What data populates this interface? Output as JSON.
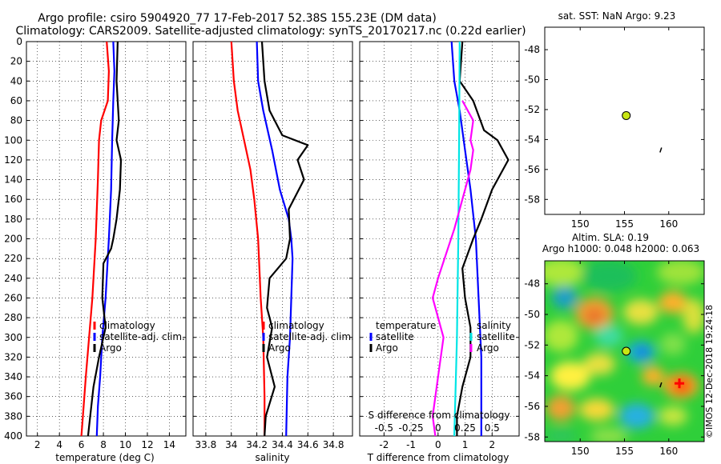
{
  "header": {
    "line1": "Argo profile: csiro 5904920_77 17-Feb-2017 52.38S 155.23E (DM data)",
    "line2": "Climatology: CARS2009. Satellite-adjusted climatology: synTS_20170217.nc (0.22d earlier)"
  },
  "colors": {
    "climatology": "#ff0000",
    "satellite": "#0000ff",
    "argo": "#000000",
    "salinity_diff": "#ff00ff",
    "temperature_diff_clim": "#00e5e5",
    "marker": "#c8e614"
  },
  "chart_data": [
    {
      "type": "line",
      "id": "temperature",
      "xlabel": "temperature (deg C)",
      "ylabel": "",
      "xlim": [
        1,
        15.5
      ],
      "ylim": [
        400,
        0
      ],
      "xticks": [
        "2",
        "4",
        "6",
        "8",
        "10",
        "12",
        "14"
      ],
      "xtick_values": [
        2,
        4,
        6,
        8,
        10,
        12,
        14
      ],
      "yticks": [
        "0",
        "20",
        "40",
        "60",
        "80",
        "100",
        "120",
        "140",
        "160",
        "180",
        "200",
        "220",
        "240",
        "260",
        "280",
        "300",
        "320",
        "340",
        "360",
        "380",
        "400"
      ],
      "ytick_values": [
        0,
        20,
        40,
        60,
        80,
        100,
        120,
        140,
        160,
        180,
        200,
        220,
        240,
        260,
        280,
        300,
        320,
        340,
        360,
        380,
        400
      ],
      "legend": [
        "climatology",
        "satellite-adj. clim.",
        "Argo"
      ],
      "series": [
        {
          "name": "climatology",
          "color": "#ff0000",
          "points": [
            [
              8.3,
              0
            ],
            [
              8.5,
              30
            ],
            [
              8.4,
              60
            ],
            [
              7.8,
              80
            ],
            [
              7.6,
              100
            ],
            [
              7.5,
              140
            ],
            [
              7.3,
              200
            ],
            [
              7.0,
              260
            ],
            [
              6.7,
              300
            ],
            [
              6.4,
              340
            ],
            [
              6.2,
              370
            ],
            [
              6.0,
              400
            ]
          ]
        },
        {
          "name": "satellite-adj. clim.",
          "color": "#0000ff",
          "points": [
            [
              8.9,
              0
            ],
            [
              9.0,
              30
            ],
            [
              8.9,
              60
            ],
            [
              8.8,
              100
            ],
            [
              8.7,
              150
            ],
            [
              8.5,
              200
            ],
            [
              8.2,
              260
            ],
            [
              7.9,
              300
            ],
            [
              7.7,
              340
            ],
            [
              7.5,
              370
            ],
            [
              7.4,
              400
            ]
          ]
        },
        {
          "name": "Argo",
          "color": "#000000",
          "points": [
            [
              9.3,
              0
            ],
            [
              9.2,
              40
            ],
            [
              9.3,
              60
            ],
            [
              9.4,
              80
            ],
            [
              9.2,
              100
            ],
            [
              9.6,
              120
            ],
            [
              9.5,
              150
            ],
            [
              9.2,
              180
            ],
            [
              8.9,
              200
            ],
            [
              8.7,
              210
            ],
            [
              8.0,
              225
            ],
            [
              7.9,
              260
            ],
            [
              8.2,
              290
            ],
            [
              7.6,
              320
            ],
            [
              7.1,
              350
            ],
            [
              6.8,
              380
            ],
            [
              6.6,
              400
            ]
          ]
        }
      ]
    },
    {
      "type": "line",
      "id": "salinity",
      "xlabel": "salinity",
      "ylabel": "",
      "xlim": [
        33.7,
        34.95
      ],
      "ylim": [
        400,
        0
      ],
      "xticks": [
        "33.8",
        "34",
        "34.2",
        "34.4",
        "34.6",
        "34.8"
      ],
      "xtick_values": [
        33.8,
        34.0,
        34.2,
        34.4,
        34.6,
        34.8
      ],
      "legend": [
        "climatology",
        "satellite-adj. clim.",
        "Argo"
      ],
      "series": [
        {
          "name": "climatology",
          "color": "#ff0000",
          "points": [
            [
              34.0,
              0
            ],
            [
              34.02,
              40
            ],
            [
              34.05,
              70
            ],
            [
              34.1,
              100
            ],
            [
              34.15,
              130
            ],
            [
              34.18,
              160
            ],
            [
              34.21,
              200
            ],
            [
              34.23,
              260
            ],
            [
              34.25,
              300
            ],
            [
              34.26,
              360
            ],
            [
              34.26,
              400
            ]
          ]
        },
        {
          "name": "satellite-adj. clim.",
          "color": "#0000ff",
          "points": [
            [
              34.2,
              0
            ],
            [
              34.21,
              40
            ],
            [
              34.25,
              70
            ],
            [
              34.32,
              110
            ],
            [
              34.38,
              150
            ],
            [
              34.45,
              180
            ],
            [
              34.47,
              200
            ],
            [
              34.48,
              220
            ],
            [
              34.47,
              260
            ],
            [
              34.46,
              300
            ],
            [
              34.44,
              340
            ],
            [
              34.43,
              400
            ]
          ]
        },
        {
          "name": "Argo",
          "color": "#000000",
          "points": [
            [
              34.24,
              0
            ],
            [
              34.26,
              40
            ],
            [
              34.3,
              70
            ],
            [
              34.4,
              95
            ],
            [
              34.6,
              105
            ],
            [
              34.52,
              120
            ],
            [
              34.57,
              140
            ],
            [
              34.45,
              170
            ],
            [
              34.46,
              200
            ],
            [
              34.43,
              220
            ],
            [
              34.3,
              240
            ],
            [
              34.28,
              270
            ],
            [
              34.32,
              290
            ],
            [
              34.28,
              320
            ],
            [
              34.34,
              350
            ],
            [
              34.27,
              380
            ],
            [
              34.26,
              400
            ]
          ]
        }
      ]
    },
    {
      "type": "line",
      "id": "difference",
      "xlabel": "T difference from climatology",
      "secondary_xlabel": "S difference from climatology",
      "xlim": [
        -2.9,
        3.0
      ],
      "ylim": [
        400,
        0
      ],
      "xticks": [
        "-2",
        "-1",
        "0",
        "1",
        "2"
      ],
      "xtick_values": [
        -2,
        -1,
        0,
        1,
        2
      ],
      "secondary_xticks": [
        "-0.5",
        "-0.25",
        "0",
        "0.25",
        "0.5"
      ],
      "legend_left": [
        "temperature",
        "satellite",
        "Argo"
      ],
      "legend_right": [
        "salinity",
        "satellite",
        "Argo"
      ],
      "series": [
        {
          "name": "temperature satellite",
          "color": "#0000ff",
          "points": [
            [
              0.5,
              0
            ],
            [
              0.6,
              40
            ],
            [
              0.8,
              70
            ],
            [
              1.0,
              110
            ],
            [
              1.2,
              150
            ],
            [
              1.4,
              200
            ],
            [
              1.5,
              260
            ],
            [
              1.6,
              320
            ],
            [
              1.6,
              400
            ]
          ]
        },
        {
          "name": "temperature Argo",
          "color": "#000000",
          "points": [
            [
              0.9,
              0
            ],
            [
              0.8,
              40
            ],
            [
              1.3,
              60
            ],
            [
              1.7,
              90
            ],
            [
              2.2,
              100
            ],
            [
              2.6,
              120
            ],
            [
              2.0,
              150
            ],
            [
              1.6,
              180
            ],
            [
              1.3,
              200
            ],
            [
              0.9,
              230
            ],
            [
              1.0,
              260
            ],
            [
              1.2,
              290
            ],
            [
              1.2,
              320
            ],
            [
              0.9,
              350
            ],
            [
              0.7,
              380
            ],
            [
              0.7,
              400
            ]
          ]
        },
        {
          "name": "salinity satellite",
          "color": "#00e5e5",
          "points": [
            [
              0.8,
              0
            ],
            [
              0.78,
              100
            ],
            [
              0.75,
              200
            ],
            [
              0.7,
              300
            ],
            [
              0.6,
              400
            ]
          ]
        },
        {
          "name": "salinity Argo",
          "color": "#ff00ff",
          "points": [
            [
              0.9,
              60
            ],
            [
              1.3,
              80
            ],
            [
              1.2,
              100
            ],
            [
              1.3,
              110
            ],
            [
              1.2,
              130
            ],
            [
              0.9,
              160
            ],
            [
              0.6,
              190
            ],
            [
              0.0,
              240
            ],
            [
              -0.2,
              260
            ],
            [
              0.2,
              300
            ],
            [
              0.0,
              340
            ],
            [
              -0.2,
              380
            ],
            [
              -0.1,
              400
            ]
          ]
        }
      ]
    },
    {
      "type": "scatter",
      "id": "sst_map",
      "title": "sat. SST: NaN Argo: 9.23",
      "xlim": [
        146,
        164
      ],
      "ylim": [
        -59,
        -46.5
      ],
      "xticks": [
        "150",
        "155",
        "160"
      ],
      "xtick_values": [
        150,
        155,
        160
      ],
      "yticks": [
        "-48",
        "-50",
        "-52",
        "-54",
        "-56",
        "-58"
      ],
      "ytick_values": [
        -48,
        -50,
        -52,
        -54,
        -56,
        -58
      ],
      "points": [
        {
          "name": "argo-float",
          "x": 155.2,
          "y": -52.4
        },
        {
          "name": "trajectory",
          "x": 159.1,
          "y": -54.7
        }
      ]
    },
    {
      "type": "heatmap",
      "id": "sla_map",
      "title": "Altim. SLA: 0.19",
      "subtitle": "Argo h1000: 0.048 h2000: 0.063",
      "xlim": [
        146,
        164
      ],
      "ylim": [
        -58.3,
        -46.5
      ],
      "xticks": [
        "150",
        "155",
        "160"
      ],
      "xtick_values": [
        150,
        155,
        160
      ],
      "yticks": [
        "-48",
        "-50",
        "-52",
        "-54",
        "-56",
        "-58"
      ],
      "ytick_values": [
        -48,
        -50,
        -52,
        -54,
        -56,
        -58
      ],
      "points": [
        {
          "name": "argo-float",
          "x": 155.2,
          "y": -52.4
        },
        {
          "name": "hotspot",
          "x": 161.2,
          "y": -54.5
        }
      ]
    }
  ],
  "footer": {
    "credit": "©IMOS 12-Dec-2018 19:24:18"
  }
}
